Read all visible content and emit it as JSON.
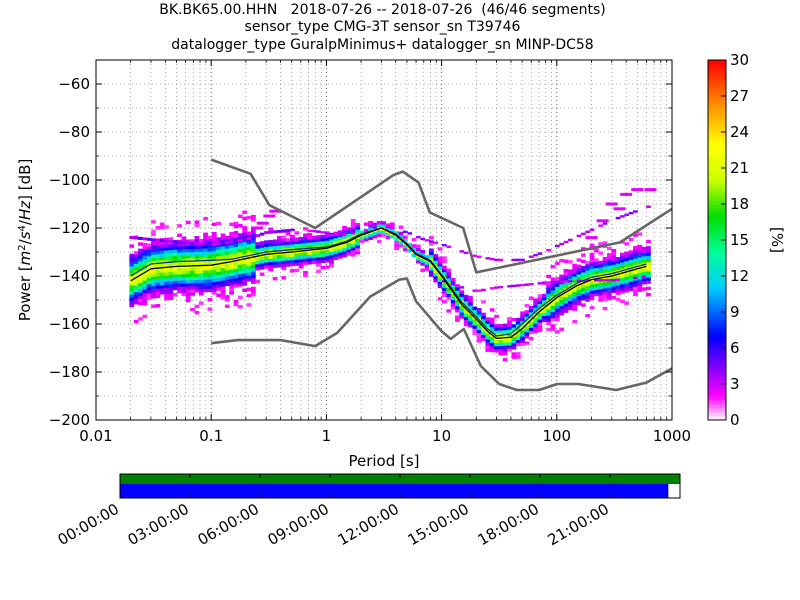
{
  "title_lines": [
    "BK.BK65.00.HHN   2018-07-26 -- 2018-07-26  (46/46 segments)",
    "sensor_type CMG-3T sensor_sn T39746",
    "datalogger_type GuralpMinimus+ datalogger_sn MINP-DC58"
  ],
  "colors": {
    "noise_model": "#666666",
    "mode_line": "#000000",
    "mean_line": "#003399",
    "data_available": "#008000",
    "psd_segments": "#0000ff",
    "grid": "#000000"
  },
  "chart_data": {
    "type": "heatmap",
    "xlabel": "Period [s]",
    "ylabel_parts": [
      "Power [",
      "m",
      "2",
      "/",
      "s",
      "4",
      "/",
      "Hz",
      "] [dB]"
    ],
    "x_scale": "log",
    "xlim": [
      0.01,
      1000
    ],
    "ylim": [
      -200,
      -50
    ],
    "grid": true,
    "x_tick_labels": [
      {
        "value": 0.01,
        "label": "0.01"
      },
      {
        "value": 0.1,
        "label": "0.1"
      },
      {
        "value": 1,
        "label": "1"
      },
      {
        "value": 10,
        "label": "10"
      },
      {
        "value": 100,
        "label": "100"
      },
      {
        "value": 1000,
        "label": "1000"
      }
    ],
    "y_tick_labels": [
      {
        "value": -60,
        "label": "−60"
      },
      {
        "value": -80,
        "label": "−80"
      },
      {
        "value": -100,
        "label": "−100"
      },
      {
        "value": -120,
        "label": "−120"
      },
      {
        "value": -140,
        "label": "−140"
      },
      {
        "value": -160,
        "label": "−160"
      },
      {
        "value": -180,
        "label": "−180"
      },
      {
        "value": -200,
        "label": "−200"
      }
    ],
    "colorbar": {
      "label": "[%]",
      "range": [
        0,
        30
      ],
      "ticks": [
        {
          "value": 0,
          "label": "0"
        },
        {
          "value": 3,
          "label": "3"
        },
        {
          "value": 6,
          "label": "6"
        },
        {
          "value": 9,
          "label": "9"
        },
        {
          "value": 12,
          "label": "12"
        },
        {
          "value": 15,
          "label": "15"
        },
        {
          "value": 18,
          "label": "18"
        },
        {
          "value": 21,
          "label": "21"
        },
        {
          "value": 24,
          "label": "24"
        },
        {
          "value": 27,
          "label": "27"
        },
        {
          "value": 30,
          "label": "30"
        }
      ],
      "stops": [
        {
          "value": 0,
          "color": "#ffffff"
        },
        {
          "value": 2,
          "color": "#ff00ff"
        },
        {
          "value": 4,
          "color": "#9900ff"
        },
        {
          "value": 7,
          "color": "#0000ff"
        },
        {
          "value": 11,
          "color": "#00ccff"
        },
        {
          "value": 14,
          "color": "#00ff99"
        },
        {
          "value": 17,
          "color": "#00dd00"
        },
        {
          "value": 20,
          "color": "#ccff00"
        },
        {
          "value": 23,
          "color": "#ffff00"
        },
        {
          "value": 26,
          "color": "#ff9900"
        },
        {
          "value": 30,
          "color": "#ff0000"
        }
      ]
    },
    "noise_models": [
      {
        "points": [
          [
            0.1,
            -91.5
          ],
          [
            0.22,
            -97.4
          ],
          [
            0.32,
            -110.5
          ],
          [
            0.8,
            -120.0
          ],
          [
            3.8,
            -98.0
          ],
          [
            4.6,
            -96.5
          ],
          [
            6.3,
            -101.0
          ],
          [
            7.9,
            -113.5
          ],
          [
            15.4,
            -120.0
          ],
          [
            20.0,
            -138.5
          ],
          [
            354,
            -126.0
          ],
          [
            1000,
            -112.0
          ]
        ]
      },
      {
        "points": [
          [
            0.1,
            -168.0
          ],
          [
            0.17,
            -166.7
          ],
          [
            0.4,
            -166.7
          ],
          [
            0.8,
            -169.2
          ],
          [
            1.24,
            -163.7
          ],
          [
            2.4,
            -148.6
          ],
          [
            4.3,
            -141.5
          ],
          [
            5.0,
            -141.1
          ],
          [
            6.0,
            -150.5
          ],
          [
            10.0,
            -163.0
          ],
          [
            12.0,
            -166.2
          ],
          [
            15.6,
            -162.1
          ],
          [
            21.9,
            -177.5
          ],
          [
            31.6,
            -185.0
          ],
          [
            45.0,
            -187.5
          ],
          [
            70.0,
            -187.5
          ],
          [
            101,
            -185.0
          ],
          [
            154,
            -185.0
          ],
          [
            328,
            -187.5
          ],
          [
            600,
            -184.4
          ],
          [
            1000,
            -178.5
          ]
        ]
      }
    ],
    "mode_line": {
      "points": [
        [
          0.02,
          -142.0
        ],
        [
          0.03,
          -137.0
        ],
        [
          0.05,
          -136.0
        ],
        [
          0.1,
          -135.5
        ],
        [
          0.15,
          -134.0
        ],
        [
          0.3,
          -131.0
        ],
        [
          0.5,
          -130.0
        ],
        [
          1,
          -128.5
        ],
        [
          1.5,
          -126.0
        ],
        [
          2,
          -123.0
        ],
        [
          3,
          -120.0
        ],
        [
          4,
          -123.0
        ],
        [
          5,
          -127.0
        ],
        [
          6,
          -131.0
        ],
        [
          8,
          -134.0
        ],
        [
          10,
          -140.0
        ],
        [
          15,
          -152.0
        ],
        [
          20,
          -158.0
        ],
        [
          25,
          -163.0
        ],
        [
          30,
          -166.0
        ],
        [
          40,
          -165.5
        ],
        [
          50,
          -162.0
        ],
        [
          70,
          -155.0
        ],
        [
          100,
          -149.0
        ],
        [
          150,
          -144.0
        ],
        [
          200,
          -141.5
        ],
        [
          300,
          -140.0
        ],
        [
          500,
          -137.0
        ],
        [
          600,
          -136.0
        ]
      ]
    },
    "mean_line": {
      "points": [
        [
          0.02,
          -140.0
        ],
        [
          0.03,
          -135.0
        ],
        [
          0.05,
          -134.0
        ],
        [
          0.1,
          -133.5
        ],
        [
          0.15,
          -133.0
        ],
        [
          0.3,
          -130.0
        ],
        [
          0.5,
          -129.0
        ],
        [
          1,
          -128.0
        ],
        [
          1.5,
          -125.5
        ],
        [
          2,
          -122.5
        ],
        [
          3,
          -120.0
        ],
        [
          4,
          -122.5
        ],
        [
          5,
          -126.5
        ],
        [
          6,
          -130.5
        ],
        [
          8,
          -133.5
        ],
        [
          10,
          -139.5
        ],
        [
          15,
          -151.0
        ],
        [
          20,
          -157.0
        ],
        [
          25,
          -162.0
        ],
        [
          30,
          -165.0
        ],
        [
          40,
          -164.0
        ],
        [
          50,
          -160.0
        ],
        [
          70,
          -153.5
        ],
        [
          100,
          -148.0
        ],
        [
          150,
          -143.0
        ],
        [
          200,
          -140.5
        ],
        [
          300,
          -139.0
        ],
        [
          500,
          -136.0
        ],
        [
          600,
          -135.0
        ]
      ]
    },
    "upper_branch": {
      "points": [
        [
          0.02,
          -124.0
        ],
        [
          0.05,
          -126.0
        ],
        [
          0.1,
          -127.0
        ],
        [
          0.2,
          -125.0
        ],
        [
          0.3,
          -122.0
        ],
        [
          0.5,
          -121.0
        ],
        [
          0.8,
          -121.5
        ],
        [
          1.2,
          -123.0
        ],
        [
          2,
          -122.0
        ],
        [
          3,
          -119.0
        ],
        [
          5,
          -122.0
        ],
        [
          7,
          -125.0
        ],
        [
          10,
          -127.0
        ],
        [
          15,
          -130.0
        ],
        [
          20,
          -132.0
        ],
        [
          30,
          -133.5
        ],
        [
          50,
          -133.5
        ],
        [
          80,
          -130.0
        ],
        [
          120,
          -126.0
        ],
        [
          200,
          -121.0
        ],
        [
          300,
          -117.0
        ],
        [
          500,
          -113.0
        ],
        [
          650,
          -111.0
        ]
      ]
    },
    "lower_branch": {
      "points": [
        [
          10,
          -142.0
        ],
        [
          15,
          -145.0
        ],
        [
          20,
          -146.5
        ],
        [
          30,
          -145.0
        ],
        [
          50,
          -144.0
        ],
        [
          80,
          -143.0
        ],
        [
          120,
          -142.5
        ],
        [
          200,
          -142.0
        ],
        [
          300,
          -142.0
        ],
        [
          500,
          -141.0
        ],
        [
          650,
          -140.0
        ]
      ]
    },
    "outliers": [
      {
        "x": 0.28,
        "y": -118
      },
      {
        "x": 0.32,
        "y": -115
      },
      {
        "x": 0.36,
        "y": -113
      },
      {
        "x": 0.25,
        "y": -120
      },
      {
        "x": 400,
        "y": -106
      },
      {
        "x": 500,
        "y": -104
      },
      {
        "x": 650,
        "y": -104
      },
      {
        "x": 300,
        "y": -110
      },
      {
        "x": 350,
        "y": -112
      },
      {
        "x": 250,
        "y": -117
      },
      {
        "x": 200,
        "y": -124
      }
    ],
    "timeline": {
      "tick_labels": [
        "00:00:00",
        "03:00:00",
        "06:00:00",
        "09:00:00",
        "12:00:00",
        "15:00:00",
        "18:00:00",
        "21:00:00"
      ],
      "tick_hours": [
        0,
        3,
        6,
        9,
        12,
        15,
        18,
        21
      ],
      "range_hours": [
        0,
        24
      ],
      "data_available_hours": [
        0,
        24
      ],
      "psd_segment_hours": [
        0,
        23.5
      ]
    }
  }
}
